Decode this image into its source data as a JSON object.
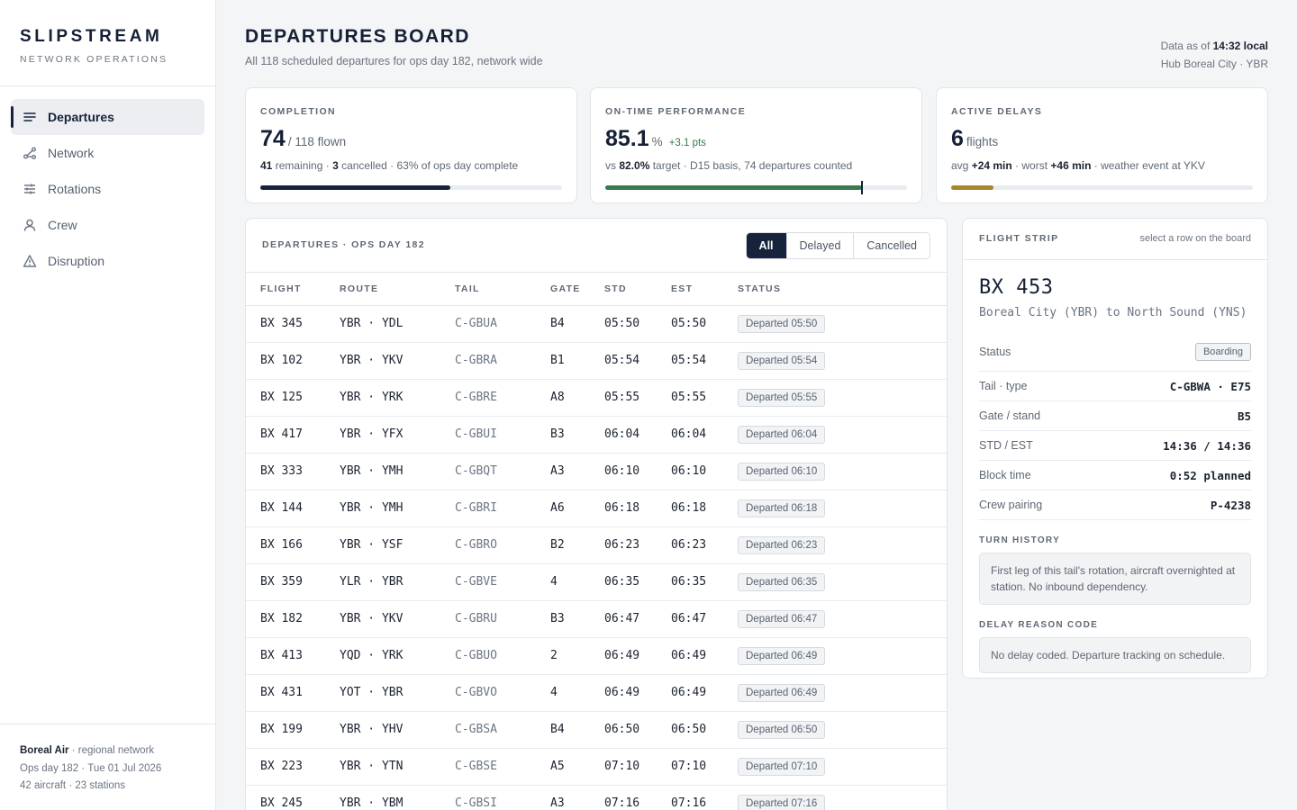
{
  "brand": {
    "name": "SLIPSTREAM",
    "sub": "NETWORK OPERATIONS"
  },
  "nav": [
    {
      "label": "Departures",
      "icon": "list-icon",
      "active": true
    },
    {
      "label": "Network",
      "icon": "network-icon",
      "active": false
    },
    {
      "label": "Rotations",
      "icon": "sliders-icon",
      "active": false
    },
    {
      "label": "Crew",
      "icon": "person-icon",
      "active": false
    },
    {
      "label": "Disruption",
      "icon": "warning-icon",
      "active": false
    }
  ],
  "footer": {
    "org": "Boreal Air",
    "org_suffix": " · regional network",
    "line2": "Ops day 182 · Tue 01 Jul 2026",
    "line3": "42 aircraft · 23 stations"
  },
  "header": {
    "title": "DEPARTURES BOARD",
    "subtitle": "All 118 scheduled departures for ops day 182, network wide",
    "asof_prefix": "Data as of ",
    "asof_time": "14:32 local",
    "hub": "Hub Boreal City · YBR"
  },
  "kpis": {
    "completion": {
      "label": "COMPLETION",
      "big": "74",
      "unit": "/ 118 flown",
      "d1": "41",
      "d2": " remaining · ",
      "d3": "3",
      "d4": " cancelled · 63% of ops day complete",
      "progress": 0.63,
      "color": "#16233b"
    },
    "otp": {
      "label": "ON-TIME PERFORMANCE",
      "big": "85.1",
      "unit": "%",
      "delta": "+3.1 pts",
      "d1": "vs ",
      "d2": "82.0%",
      "d3": " target · D15 basis, 74 departures counted",
      "progress": 0.851,
      "target": 0.82,
      "color": "#3a7a4e"
    },
    "delays": {
      "label": "ACTIVE DELAYS",
      "big": "6",
      "unit": "flights",
      "d1": "avg ",
      "d2": "+24 min",
      "d3": " · worst ",
      "d4": "+46 min",
      "d5": " · weather event at YKV",
      "progress": 0.14,
      "color": "#a8862a"
    }
  },
  "board": {
    "title": "DEPARTURES · OPS DAY 182",
    "filters": [
      {
        "label": "All",
        "active": true
      },
      {
        "label": "Delayed",
        "active": false
      },
      {
        "label": "Cancelled",
        "active": false
      }
    ],
    "columns": [
      "FLIGHT",
      "ROUTE",
      "TAIL",
      "GATE",
      "STD",
      "EST",
      "STATUS"
    ],
    "rows": [
      {
        "flight": "BX 345",
        "route": "YBR · YDL",
        "tail": "C-GBUA",
        "gate": "B4",
        "std": "05:50",
        "est": "05:50",
        "status": "Departed 05:50"
      },
      {
        "flight": "BX 102",
        "route": "YBR · YKV",
        "tail": "C-GBRA",
        "gate": "B1",
        "std": "05:54",
        "est": "05:54",
        "status": "Departed 05:54"
      },
      {
        "flight": "BX 125",
        "route": "YBR · YRK",
        "tail": "C-GBRE",
        "gate": "A8",
        "std": "05:55",
        "est": "05:55",
        "status": "Departed 05:55"
      },
      {
        "flight": "BX 417",
        "route": "YBR · YFX",
        "tail": "C-GBUI",
        "gate": "B3",
        "std": "06:04",
        "est": "06:04",
        "status": "Departed 06:04"
      },
      {
        "flight": "BX 333",
        "route": "YBR · YMH",
        "tail": "C-GBQT",
        "gate": "A3",
        "std": "06:10",
        "est": "06:10",
        "status": "Departed 06:10"
      },
      {
        "flight": "BX 144",
        "route": "YBR · YMH",
        "tail": "C-GBRI",
        "gate": "A6",
        "std": "06:18",
        "est": "06:18",
        "status": "Departed 06:18"
      },
      {
        "flight": "BX 166",
        "route": "YBR · YSF",
        "tail": "C-GBRO",
        "gate": "B2",
        "std": "06:23",
        "est": "06:23",
        "status": "Departed 06:23"
      },
      {
        "flight": "BX 359",
        "route": "YLR · YBR",
        "tail": "C-GBVE",
        "gate": "4",
        "std": "06:35",
        "est": "06:35",
        "status": "Departed 06:35"
      },
      {
        "flight": "BX 182",
        "route": "YBR · YKV",
        "tail": "C-GBRU",
        "gate": "B3",
        "std": "06:47",
        "est": "06:47",
        "status": "Departed 06:47"
      },
      {
        "flight": "BX 413",
        "route": "YQD · YRK",
        "tail": "C-GBUO",
        "gate": "2",
        "std": "06:49",
        "est": "06:49",
        "status": "Departed 06:49"
      },
      {
        "flight": "BX 431",
        "route": "YOT · YBR",
        "tail": "C-GBVO",
        "gate": "4",
        "std": "06:49",
        "est": "06:49",
        "status": "Departed 06:49"
      },
      {
        "flight": "BX 199",
        "route": "YBR · YHV",
        "tail": "C-GBSA",
        "gate": "B4",
        "std": "06:50",
        "est": "06:50",
        "status": "Departed 06:50"
      },
      {
        "flight": "BX 223",
        "route": "YBR · YTN",
        "tail": "C-GBSE",
        "gate": "A5",
        "std": "07:10",
        "est": "07:10",
        "status": "Departed 07:10"
      },
      {
        "flight": "BX 245",
        "route": "YBR · YBM",
        "tail": "C-GBSI",
        "gate": "A3",
        "std": "07:16",
        "est": "07:16",
        "status": "Departed 07:16"
      }
    ]
  },
  "strip": {
    "title": "FLIGHT STRIP",
    "hint": "select a row on the board",
    "flight": "BX 453",
    "route": "Boreal City (YBR) to North Sound (YNS)",
    "status_label": "Status",
    "status_value": "Boarding",
    "fields": [
      {
        "label": "Tail · type",
        "value": "C-GBWA · E75"
      },
      {
        "label": "Gate / stand",
        "value": "B5"
      },
      {
        "label": "STD / EST",
        "value": "14:36 / 14:36"
      },
      {
        "label": "Block time",
        "value": "0:52 planned"
      },
      {
        "label": "Crew pairing",
        "value": "P-4238"
      }
    ],
    "turn_label": "TURN HISTORY",
    "turn_text": "First leg of this tail's rotation, aircraft overnighted at station. No inbound dependency.",
    "delay_label": "DELAY REASON CODE",
    "delay_text": "No delay coded. Departure tracking on schedule."
  }
}
